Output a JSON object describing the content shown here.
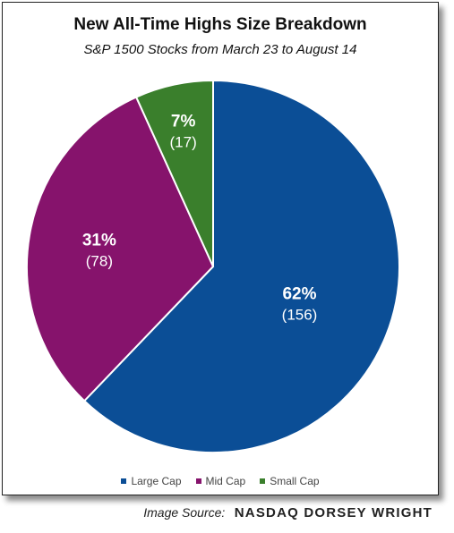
{
  "chart_data": {
    "type": "pie",
    "title": "New All-Time Highs Size Breakdown",
    "subtitle": "S&P 1500 Stocks from March 23 to August 14",
    "categories": [
      "Large Cap",
      "Mid Cap",
      "Small Cap"
    ],
    "values": [
      156,
      78,
      17
    ],
    "percent_labels": [
      "62%",
      "31%",
      "7%"
    ],
    "count_labels": [
      "(156)",
      "(78)",
      "(17)"
    ],
    "colors": [
      "#0b4e96",
      "#86136c",
      "#3a7f2c"
    ],
    "legend": "bottom"
  },
  "source": {
    "label": "Image Source:",
    "name": "NASDAQ DORSEY WRIGHT"
  }
}
